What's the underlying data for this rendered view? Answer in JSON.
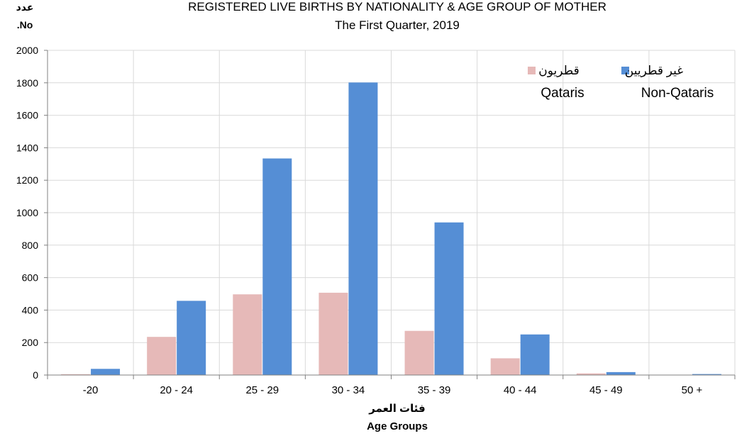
{
  "chart_data": {
    "type": "bar",
    "title": "REGISTERED LIVE BIRTHS BY NATIONALITY & AGE GROUP OF MOTHER",
    "subtitle": "The First Quarter, 2019",
    "ylabel_ar": "عدد",
    "ylabel_en": ".No",
    "xlabel_ar": "فئات العمر",
    "xlabel_en": "Age Groups",
    "categories": [
      "-20",
      "20 - 24",
      "25 - 29",
      "30 - 34",
      "35 - 39",
      "40 - 44",
      "45 - 49",
      "50 +"
    ],
    "series": [
      {
        "name": "Qataris",
        "name_ar": "قطريون",
        "color": "#e6b9b8",
        "values": [
          5,
          235,
          497,
          507,
          272,
          103,
          10,
          1
        ]
      },
      {
        "name": "Non-Qataris",
        "name_ar": "غير قطريين",
        "color": "#558ed5",
        "values": [
          38,
          457,
          1334,
          1802,
          940,
          250,
          18,
          6
        ]
      }
    ],
    "ylim": [
      0,
      2000
    ],
    "yticks": [
      0,
      200,
      400,
      600,
      800,
      1000,
      1200,
      1400,
      1600,
      1800,
      2000
    ],
    "grid": true,
    "legend_position": "top-right"
  }
}
